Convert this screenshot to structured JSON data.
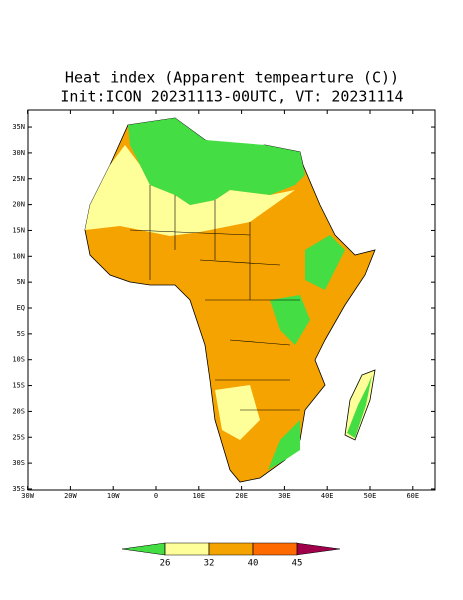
{
  "header": {
    "title": "Heat index (Apparent tempearture (C))",
    "subtitle": "Init:ICON 20231113-00UTC, VT: 20231114"
  },
  "map": {
    "lat_ticks": [
      {
        "value": 35,
        "label": "35N"
      },
      {
        "value": 30,
        "label": "30N"
      },
      {
        "value": 25,
        "label": "25N"
      },
      {
        "value": 20,
        "label": "20N"
      },
      {
        "value": 15,
        "label": "15N"
      },
      {
        "value": 10,
        "label": "10N"
      },
      {
        "value": 5,
        "label": "5N"
      },
      {
        "value": 0,
        "label": "EQ"
      },
      {
        "value": -5,
        "label": "5S"
      },
      {
        "value": -10,
        "label": "10S"
      },
      {
        "value": -15,
        "label": "15S"
      },
      {
        "value": -20,
        "label": "20S"
      },
      {
        "value": -25,
        "label": "25S"
      },
      {
        "value": -30,
        "label": "30S"
      },
      {
        "value": -35,
        "label": "35S"
      }
    ],
    "lon_ticks": [
      {
        "value": -30,
        "label": "30W"
      },
      {
        "value": -20,
        "label": "20W"
      },
      {
        "value": -10,
        "label": "10W"
      },
      {
        "value": 0,
        "label": "0"
      },
      {
        "value": 10,
        "label": "10E"
      },
      {
        "value": 20,
        "label": "20E"
      },
      {
        "value": 30,
        "label": "30E"
      },
      {
        "value": 40,
        "label": "40E"
      },
      {
        "value": 50,
        "label": "50E"
      },
      {
        "value": 60,
        "label": "60E"
      }
    ],
    "colorbar": {
      "ticks": [
        26,
        32,
        40,
        45
      ],
      "colors": [
        "#44dd44",
        "#ffff99",
        "#f5a300",
        "#ff6a00",
        "#a0004a"
      ]
    }
  }
}
